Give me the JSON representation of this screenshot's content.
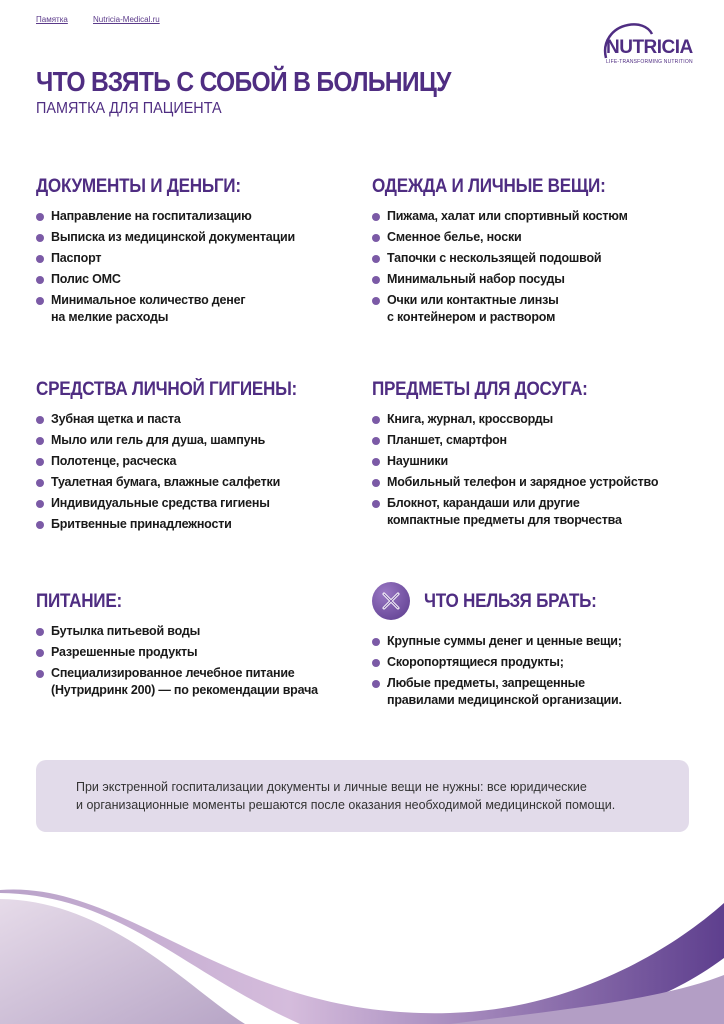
{
  "header": {
    "links": [
      "Памятка",
      "Nutricia-Medical.ru"
    ],
    "logo_text": "NUTRICIA",
    "logo_tagline": "LIFE-TRANSFORMING NUTRITION",
    "title": "ЧТО ВЗЯТЬ С СОБОЙ В БОЛЬНИЦУ",
    "subtitle": "ПАМЯТКА ДЛЯ ПАЦИЕНТА"
  },
  "sections": [
    {
      "title": "ДОКУМЕНТЫ И ДЕНЬГИ:",
      "items": [
        "Направление на госпитализацию",
        "Выписка из медицинской документации",
        "Паспорт",
        "Полис ОМС",
        "Минимальное количество денег\nна мелкие расходы"
      ]
    },
    {
      "title": "ОДЕЖДА И ЛИЧНЫЕ ВЕЩИ:",
      "items": [
        "Пижама, халат или спортивный костюм",
        "Сменное белье, носки",
        "Тапочки с нескользящей подошвой",
        "Минимальный набор посуды",
        "Очки или контактные линзы\nс контейнером и раствором"
      ]
    },
    {
      "title": "СРЕДСТВА ЛИЧНОЙ ГИГИЕНЫ:",
      "items": [
        "Зубная щетка и паста",
        "Мыло или гель для душа, шампунь",
        "Полотенце, расческа",
        "Туалетная бумага, влажные салфетки",
        "Индивидуальные средства гигиены",
        "Бритвенные принадлежности"
      ]
    },
    {
      "title": "ПРЕДМЕТЫ ДЛЯ ДОСУГА:",
      "items": [
        "Книга, журнал, кроссворды",
        "Планшет, смартфон",
        "Наушники",
        "Мобильный телефон и зарядное устройство",
        "Блокнот, карандаши или другие\nкомпактные предметы для творчества"
      ]
    },
    {
      "title": "ПИТАНИЕ:",
      "items": [
        "Бутылка питьевой воды",
        "Разрешенные продукты",
        "Специализированное лечебное питание\n(Нутридринк 200) — по рекомендации врача"
      ]
    },
    {
      "title": "ЧТО НЕЛЬЗЯ БРАТЬ:",
      "icon": "cross-icon",
      "items": [
        "Крупные суммы денег и ценные вещи;",
        "Скоропортящиеся продукты;",
        "Любые предметы, запрещенные\nправилами медицинской организации."
      ]
    }
  ],
  "note": "При экстренной госпитализации документы и личные вещи не нужны: все юридические\nи организационные моменты решаются после оказания необходимой медицинской помощи.",
  "colors": {
    "brand": "#4f2d82",
    "bullet": "#7b5aa6",
    "note_bg": "#e2dbea"
  }
}
